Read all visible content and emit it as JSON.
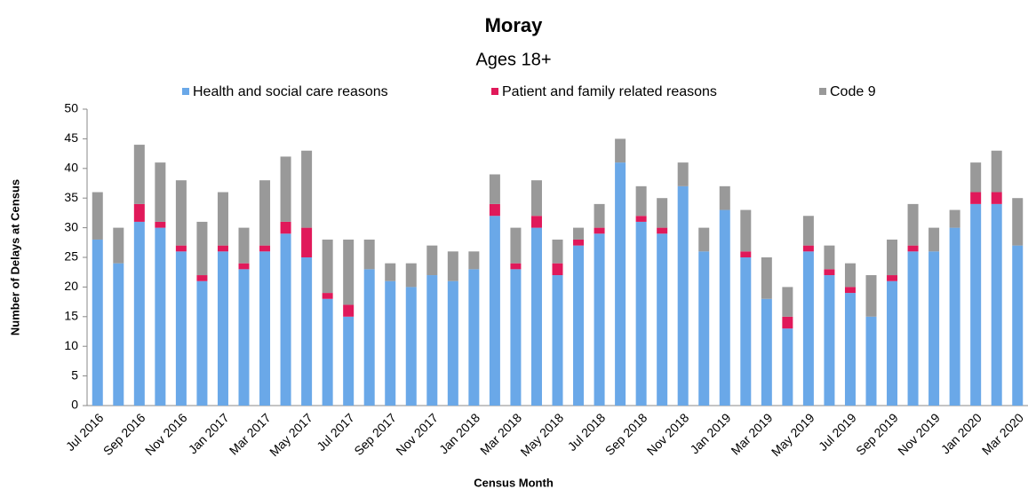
{
  "chart_data": {
    "type": "stacked_bar",
    "title": "Moray",
    "subtitle": "Ages 18+",
    "x_label": "Census Month",
    "y_label": "Number of Delays at Census",
    "categories": [
      "Jul 2016",
      null,
      "Sep 2016",
      null,
      "Nov 2016",
      null,
      "Jan 2017",
      null,
      "Mar 2017",
      null,
      "May 2017",
      null,
      "Jul 2017",
      null,
      "Sep 2017",
      null,
      "Nov 2017",
      null,
      "Jan 2018",
      null,
      "Mar 2018",
      null,
      "May 2018",
      null,
      "Jul 2018",
      null,
      "Sep 2018",
      null,
      "Nov 2018",
      null,
      "Jan 2019",
      null,
      "Mar 2019",
      null,
      "May 2019",
      null,
      "Jul 2019",
      null,
      "Sep 2019",
      null,
      "Nov 2019",
      null,
      "Jan 2020",
      null,
      "Mar 2020"
    ],
    "series": [
      {
        "name": "Health and social care reasons",
        "color": "#6aa8e8",
        "values": [
          28,
          24,
          31,
          30,
          26,
          21,
          26,
          23,
          26,
          29,
          25,
          18,
          15,
          23,
          21,
          20,
          22,
          21,
          23,
          32,
          23,
          30,
          22,
          27,
          29,
          41,
          31,
          29,
          37,
          26,
          33,
          25,
          18,
          13,
          26,
          22,
          19,
          15,
          21,
          26,
          26,
          30,
          34,
          34,
          27
        ]
      },
      {
        "name": "Patient and family related reasons",
        "color": "#e0195a",
        "values": [
          0,
          0,
          3,
          1,
          1,
          1,
          1,
          1,
          1,
          2,
          5,
          1,
          2,
          0,
          0,
          0,
          0,
          0,
          0,
          2,
          1,
          2,
          2,
          1,
          1,
          0,
          1,
          1,
          0,
          0,
          0,
          1,
          0,
          2,
          1,
          1,
          1,
          0,
          1,
          1,
          0,
          0,
          2,
          2,
          0
        ]
      },
      {
        "name": "Code 9",
        "color": "#999999",
        "values": [
          8,
          6,
          10,
          10,
          11,
          9,
          9,
          6,
          11,
          11,
          13,
          9,
          11,
          5,
          3,
          4,
          5,
          5,
          3,
          5,
          6,
          6,
          4,
          2,
          4,
          4,
          5,
          5,
          4,
          4,
          4,
          7,
          7,
          5,
          5,
          4,
          4,
          7,
          6,
          7,
          4,
          3,
          5,
          7,
          8
        ]
      }
    ],
    "ylim": [
      0,
      50
    ],
    "yticks": [
      0,
      5,
      10,
      15,
      20,
      25,
      30,
      35,
      40,
      45,
      50
    ],
    "grid": false
  }
}
